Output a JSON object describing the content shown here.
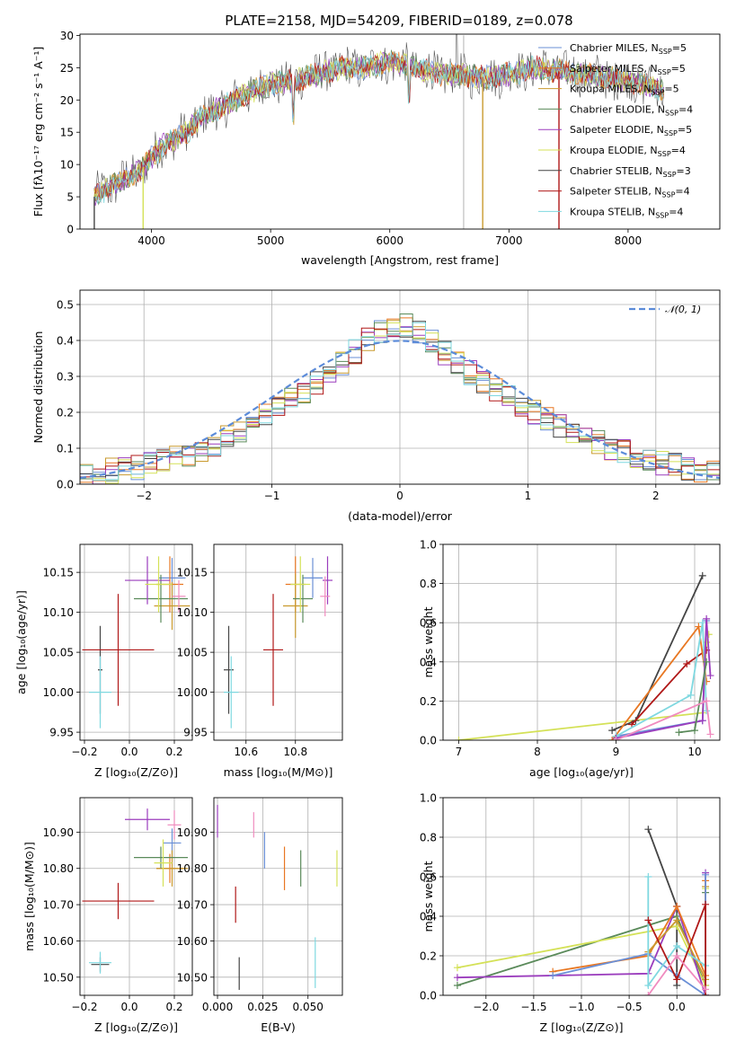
{
  "figure": {
    "title": "PLATE=2158, MJD=54209, FIBERID=0189, z=0.078"
  },
  "colors": {
    "Chabrier MILES": "#6a8fd6",
    "Salpeter MILES": "#e87722",
    "Kroupa MILES": "#c99a2e",
    "Chabrier ELODIE": "#5a8a5a",
    "Salpeter ELODIE": "#9b3dbd",
    "Kroupa ELODIE": "#d4e157",
    "Chabrier STELIB": "#444444",
    "Salpeter STELIB": "#b01818",
    "Kroupa STELIB": "#7fd8e0",
    "extra_pink": "#f08bbf",
    "normal_curve": "#5b8bd9",
    "grid": "#b0b0b0"
  },
  "chart_data": [
    {
      "id": "spectrum",
      "type": "line",
      "title": "PLATE=2158, MJD=54209, FIBERID=0189, z=0.078",
      "xlabel": "wavelength [Angstrom, rest frame]",
      "ylabel": "Flux [fλ10⁻¹⁷ erg cm⁻² s⁻¹ A⁻¹]",
      "xlim": [
        3400,
        8770
      ],
      "ylim": [
        0,
        30.2
      ],
      "xticks": [
        4000,
        5000,
        6000,
        7000,
        8000
      ],
      "yticks": [
        0,
        5,
        10,
        15,
        20,
        25,
        30
      ],
      "grid": false,
      "legend_position": "top-right",
      "continuum": {
        "x": [
          3520,
          3600,
          3700,
          3800,
          3900,
          4000,
          4100,
          4200,
          4300,
          4400,
          4500,
          4600,
          4800,
          5000,
          5200,
          5400,
          5600,
          5800,
          6000,
          6200,
          6400,
          6600,
          6800,
          7000,
          7200,
          7400,
          7600,
          7800,
          8000,
          8200,
          8300
        ],
        "y": [
          5,
          6,
          7,
          8,
          9,
          11,
          13,
          14,
          15,
          17,
          18,
          19,
          21,
          22.5,
          23,
          24,
          25,
          25,
          26,
          25,
          24,
          24,
          23.5,
          24,
          25,
          24.5,
          24,
          23.5,
          23,
          22,
          21.5
        ]
      },
      "series": [
        {
          "name": "Chabrier MILES, N_SSP=5",
          "label_main": "Chabrier MILES, N",
          "label_sub": "SSP",
          "label_end": "=5",
          "color_key": "Chabrier MILES"
        },
        {
          "name": "Salpeter MILES, N_SSP=5",
          "label_main": "Salpeter MILES, N",
          "label_sub": "SSP",
          "label_end": "=5",
          "color_key": "Salpeter MILES"
        },
        {
          "name": "Kroupa MILES, N_SSP=5",
          "label_main": "Kroupa MILES, N",
          "label_sub": "SSP",
          "label_end": "=5",
          "color_key": "Kroupa MILES"
        },
        {
          "name": "Chabrier ELODIE, N_SSP=4",
          "label_main": "Chabrier ELODIE, N",
          "label_sub": "SSP",
          "label_end": "=4",
          "color_key": "Chabrier ELODIE"
        },
        {
          "name": "Salpeter ELODIE, N_SSP=5",
          "label_main": "Salpeter ELODIE, N",
          "label_sub": "SSP",
          "label_end": "=5",
          "color_key": "Salpeter ELODIE"
        },
        {
          "name": "Kroupa ELODIE, N_SSP=4",
          "label_main": "Kroupa ELODIE, N",
          "label_sub": "SSP",
          "label_end": "=4",
          "color_key": "Kroupa ELODIE"
        },
        {
          "name": "Chabrier STELIB, N_SSP=3",
          "label_main": "Chabrier STELIB, N",
          "label_sub": "SSP",
          "label_end": "=3",
          "color_key": "Chabrier STELIB"
        },
        {
          "name": "Salpeter STELIB, N_SSP=4",
          "label_main": "Salpeter STELIB, N",
          "label_sub": "SSP",
          "label_end": "=4",
          "color_key": "Salpeter STELIB"
        },
        {
          "name": "Kroupa STELIB, N_SSP=4",
          "label_main": "Kroupa STELIB, N",
          "label_sub": "SSP",
          "label_end": "=4",
          "color_key": "Kroupa STELIB"
        }
      ],
      "drops": [
        {
          "x": 3520,
          "color_key": "Chabrier STELIB"
        },
        {
          "x": 3930,
          "color_key": "Kroupa ELODIE"
        },
        {
          "x": 6780,
          "color_key": "Kroupa MILES"
        },
        {
          "x": 7420,
          "color_key": "Salpeter STELIB"
        }
      ]
    },
    {
      "id": "residual_distribution",
      "type": "line",
      "xlabel": "(data-model)/error",
      "ylabel": "Normed distribution",
      "xlim": [
        -2.5,
        2.5
      ],
      "ylim": [
        0,
        0.54
      ],
      "xticks": [
        -2,
        -1,
        0,
        1,
        2
      ],
      "yticks": [
        0.0,
        0.1,
        0.2,
        0.3,
        0.4,
        0.5
      ],
      "grid": true,
      "legend_position": "top-right",
      "legend": "𝒩(0, 1)",
      "bin_width": 0.1,
      "histogram_shape": {
        "x": [
          -2.5,
          -2.0,
          -1.5,
          -1.0,
          -0.5,
          -0.2,
          0.0,
          0.2,
          0.5,
          1.0,
          1.5,
          2.0,
          2.5
        ],
        "y": [
          0.025,
          0.05,
          0.1,
          0.2,
          0.32,
          0.42,
          0.45,
          0.41,
          0.32,
          0.21,
          0.12,
          0.06,
          0.03
        ]
      },
      "series_color_keys": [
        "Chabrier MILES",
        "Salpeter MILES",
        "Kroupa MILES",
        "Chabrier ELODIE",
        "Salpeter ELODIE",
        "Kroupa ELODIE",
        "Chabrier STELIB",
        "Salpeter STELIB",
        "Kroupa STELIB"
      ]
    },
    {
      "id": "age_vs_Z",
      "type": "scatter",
      "xlabel": "Z [log₁₀(Z/Z⊙)]",
      "ylabel": "age  [log₁₀(age/yr)]",
      "xlim": [
        -0.22,
        0.28
      ],
      "ylim": [
        9.94,
        10.185
      ],
      "xticks": [
        -0.2,
        0.0,
        0.2
      ],
      "xtick_labels": [
        "−0.2",
        "0.0",
        "0.2"
      ],
      "yticks": [
        9.95,
        10.0,
        10.05,
        10.1,
        10.15
      ],
      "grid": true,
      "points": [
        {
          "x": 0.19,
          "y": 10.143,
          "ex": 0.06,
          "ey": 0.025,
          "color_key": "Chabrier MILES"
        },
        {
          "x": 0.18,
          "y": 10.135,
          "ex": 0.06,
          "ey": 0.035,
          "color_key": "Salpeter MILES"
        },
        {
          "x": 0.19,
          "y": 10.108,
          "ex": 0.08,
          "ey": 0.03,
          "color_key": "Kroupa MILES"
        },
        {
          "x": 0.14,
          "y": 10.117,
          "ex": 0.12,
          "ey": 0.03,
          "color_key": "Chabrier ELODIE"
        },
        {
          "x": 0.08,
          "y": 10.14,
          "ex": 0.1,
          "ey": 0.03,
          "color_key": "Salpeter ELODIE"
        },
        {
          "x": 0.13,
          "y": 10.135,
          "ex": 0.06,
          "ey": 0.035,
          "color_key": "Kroupa ELODIE"
        },
        {
          "x": -0.13,
          "y": 10.028,
          "ex": 0.01,
          "ey": 0.055,
          "color_key": "Chabrier STELIB"
        },
        {
          "x": -0.05,
          "y": 10.053,
          "ex": 0.16,
          "ey": 0.07,
          "color_key": "Salpeter STELIB"
        },
        {
          "x": -0.13,
          "y": 10.0,
          "ex": 0.05,
          "ey": 0.045,
          "color_key": "Kroupa STELIB"
        },
        {
          "x": 0.22,
          "y": 10.12,
          "ex": 0.03,
          "ey": 0.02,
          "color_key": "extra_pink"
        }
      ]
    },
    {
      "id": "age_vs_mass",
      "type": "scatter",
      "xlabel": "mass [log₁₀(M/M⊙)]",
      "ylabel": "",
      "xlim": [
        10.47,
        10.99
      ],
      "ylim": [
        9.94,
        10.185
      ],
      "xticks": [
        10.6,
        10.8
      ],
      "yticks": [
        9.95,
        10.0,
        10.05,
        10.1,
        10.15
      ],
      "grid": true,
      "points": [
        {
          "x": 10.87,
          "y": 10.143,
          "ex": 0.04,
          "ey": 0.025,
          "color_key": "Chabrier MILES"
        },
        {
          "x": 10.8,
          "y": 10.135,
          "ex": 0.04,
          "ey": 0.035,
          "color_key": "Salpeter MILES"
        },
        {
          "x": 10.8,
          "y": 10.108,
          "ex": 0.05,
          "ey": 0.04,
          "color_key": "Kroupa MILES"
        },
        {
          "x": 10.83,
          "y": 10.117,
          "ex": 0.04,
          "ey": 0.03,
          "color_key": "Chabrier ELODIE"
        },
        {
          "x": 10.93,
          "y": 10.14,
          "ex": 0.02,
          "ey": 0.03,
          "color_key": "Salpeter ELODIE"
        },
        {
          "x": 10.82,
          "y": 10.135,
          "ex": 0.04,
          "ey": 0.035,
          "color_key": "Kroupa ELODIE"
        },
        {
          "x": 10.53,
          "y": 10.028,
          "ex": 0.02,
          "ey": 0.055,
          "color_key": "Chabrier STELIB"
        },
        {
          "x": 10.71,
          "y": 10.053,
          "ex": 0.04,
          "ey": 0.07,
          "color_key": "Salpeter STELIB"
        },
        {
          "x": 10.54,
          "y": 10.0,
          "ex": 0.03,
          "ey": 0.045,
          "color_key": "Kroupa STELIB"
        },
        {
          "x": 10.92,
          "y": 10.12,
          "ex": 0.02,
          "ey": 0.025,
          "color_key": "extra_pink"
        }
      ]
    },
    {
      "id": "mass_weight_vs_age",
      "type": "line",
      "xlabel": "age  [log₁₀(age/yr)]",
      "ylabel": "mass weight",
      "xlim": [
        6.8,
        10.32
      ],
      "ylim": [
        0,
        1.0
      ],
      "xticks": [
        7,
        8,
        9,
        10
      ],
      "yticks": [
        0.0,
        0.2,
        0.4,
        0.6,
        0.8,
        1.0
      ],
      "grid": true,
      "series": [
        {
          "color_key": "Kroupa ELODIE",
          "x": [
            7.0,
            10.1,
            10.15,
            10.18
          ],
          "y": [
            0.0,
            0.14,
            0.5,
            0.54
          ]
        },
        {
          "color_key": "Chabrier STELIB",
          "x": [
            8.95,
            9.25,
            10.1
          ],
          "y": [
            0.05,
            0.1,
            0.84
          ]
        },
        {
          "color_key": "Salpeter STELIB",
          "x": [
            9.2,
            9.9,
            10.15
          ],
          "y": [
            0.08,
            0.39,
            0.46
          ]
        },
        {
          "color_key": "Salpeter MILES",
          "x": [
            8.95,
            10.05,
            10.15
          ],
          "y": [
            0.0,
            0.58,
            0.3
          ]
        },
        {
          "color_key": "Chabrier MILES",
          "x": [
            9.0,
            10.1,
            10.15
          ],
          "y": [
            0.02,
            0.1,
            0.61
          ]
        },
        {
          "color_key": "Kroupa STELIB",
          "x": [
            9.0,
            9.95,
            10.1,
            10.15
          ],
          "y": [
            0.02,
            0.23,
            0.6,
            0.15
          ]
        },
        {
          "color_key": "Salpeter ELODIE",
          "x": [
            9.0,
            10.1,
            10.15,
            10.2
          ],
          "y": [
            0.01,
            0.1,
            0.62,
            0.33
          ]
        },
        {
          "color_key": "Chabrier ELODIE",
          "x": [
            9.8,
            10.0,
            10.15
          ],
          "y": [
            0.04,
            0.05,
            0.4
          ]
        },
        {
          "color_key": "extra_pink",
          "x": [
            9.0,
            10.15,
            10.2
          ],
          "y": [
            0.0,
            0.2,
            0.03
          ]
        }
      ]
    },
    {
      "id": "mass_vs_Z",
      "type": "scatter",
      "xlabel": "Z [log₁₀(Z/Z⊙)]",
      "ylabel": "mass [log₁₀(M/M⊙)]",
      "xlim": [
        -0.22,
        0.28
      ],
      "ylim": [
        10.45,
        10.995
      ],
      "xticks": [
        -0.2,
        0.0,
        0.2
      ],
      "xtick_labels": [
        "−0.2",
        "0.0",
        "0.2"
      ],
      "yticks": [
        10.5,
        10.6,
        10.7,
        10.8,
        10.9
      ],
      "grid": true,
      "points": [
        {
          "x": 0.19,
          "y": 10.87,
          "ex": 0.04,
          "ey": 0.04,
          "color_key": "Chabrier MILES"
        },
        {
          "x": 0.18,
          "y": 10.8,
          "ex": 0.06,
          "ey": 0.04,
          "color_key": "Salpeter MILES"
        },
        {
          "x": 0.19,
          "y": 10.8,
          "ex": 0.07,
          "ey": 0.05,
          "color_key": "Kroupa MILES"
        },
        {
          "x": 0.14,
          "y": 10.83,
          "ex": 0.12,
          "ey": 0.03,
          "color_key": "Chabrier ELODIE"
        },
        {
          "x": 0.08,
          "y": 10.935,
          "ex": 0.1,
          "ey": 0.03,
          "color_key": "Salpeter ELODIE"
        },
        {
          "x": 0.15,
          "y": 10.815,
          "ex": 0.04,
          "ey": 0.065,
          "color_key": "Kroupa ELODIE"
        },
        {
          "x": -0.13,
          "y": 10.535,
          "ex": 0.04,
          "ey": 0.02,
          "color_key": "Chabrier STELIB"
        },
        {
          "x": -0.05,
          "y": 10.71,
          "ex": 0.16,
          "ey": 0.05,
          "color_key": "Salpeter STELIB"
        },
        {
          "x": -0.13,
          "y": 10.54,
          "ex": 0.05,
          "ey": 0.03,
          "color_key": "Kroupa STELIB"
        },
        {
          "x": 0.2,
          "y": 10.92,
          "ex": 0.03,
          "ey": 0.04,
          "color_key": "extra_pink"
        }
      ]
    },
    {
      "id": "mass_vs_EBV",
      "type": "scatter",
      "xlabel": "E(B-V)",
      "ylabel": "",
      "xlim": [
        -0.002,
        0.069
      ],
      "ylim": [
        10.45,
        10.995
      ],
      "xticks": [
        0.0,
        0.025,
        0.05
      ],
      "xtick_labels": [
        "0.000",
        "0.025",
        "0.050"
      ],
      "yticks": [
        10.5,
        10.6,
        10.7,
        10.8,
        10.9
      ],
      "grid": true,
      "points": [
        {
          "x": 0.0,
          "y": 10.93,
          "ey": 0.045,
          "color_key": "Salpeter ELODIE"
        },
        {
          "x": 0.012,
          "y": 10.51,
          "ey": 0.045,
          "color_key": "Chabrier STELIB"
        },
        {
          "x": 0.01,
          "y": 10.7,
          "ey": 0.05,
          "color_key": "Salpeter STELIB"
        },
        {
          "x": 0.02,
          "y": 10.92,
          "ey": 0.035,
          "color_key": "extra_pink"
        },
        {
          "x": 0.026,
          "y": 10.85,
          "ey": 0.05,
          "color_key": "Chabrier MILES"
        },
        {
          "x": 0.037,
          "y": 10.8,
          "ey": 0.06,
          "color_key": "Salpeter MILES"
        },
        {
          "x": 0.046,
          "y": 10.8,
          "ey": 0.05,
          "color_key": "Chabrier ELODIE"
        },
        {
          "x": 0.054,
          "y": 10.54,
          "ey": 0.07,
          "color_key": "Kroupa STELIB"
        },
        {
          "x": 0.066,
          "y": 10.8,
          "ey": 0.05,
          "color_key": "Kroupa ELODIE"
        }
      ]
    },
    {
      "id": "mass_weight_vs_Z",
      "type": "line",
      "xlabel": "Z [log₁₀(Z/Z⊙)]",
      "ylabel": "mass weight",
      "xlim": [
        -2.45,
        0.45
      ],
      "ylim": [
        0,
        1.0
      ],
      "xticks": [
        -2.0,
        -1.5,
        -1.0,
        -0.5,
        0.0
      ],
      "xtick_labels": [
        "−2.0",
        "−1.5",
        "−1.0",
        "−0.5",
        "0.0"
      ],
      "yticks": [
        0.0,
        0.2,
        0.4,
        0.6,
        0.8,
        1.0
      ],
      "grid": true,
      "series": [
        {
          "color_key": "Chabrier STELIB",
          "x": [
            -0.3,
            0.0,
            0.0
          ],
          "y": [
            0.84,
            0.45,
            0.05
          ]
        },
        {
          "color_key": "Chabrier ELODIE",
          "x": [
            -2.3,
            0.0,
            0.3,
            0.3
          ],
          "y": [
            0.05,
            0.4,
            0.05,
            0.52
          ]
        },
        {
          "color_key": "Kroupa ELODIE",
          "x": [
            -2.3,
            0.0,
            0.3,
            0.3
          ],
          "y": [
            0.14,
            0.35,
            0.05,
            0.54
          ]
        },
        {
          "color_key": "Salpeter ELODIE",
          "x": [
            -2.3,
            -0.3,
            0.0,
            0.3,
            0.3
          ],
          "y": [
            0.09,
            0.11,
            0.45,
            0.0,
            0.62
          ]
        },
        {
          "color_key": "Salpeter MILES",
          "x": [
            -1.3,
            -0.3,
            0.0,
            0.3,
            0.3
          ],
          "y": [
            0.12,
            0.2,
            0.45,
            0.1,
            0.58
          ]
        },
        {
          "color_key": "Kroupa MILES",
          "x": [
            -0.3,
            0.0,
            0.3,
            0.3
          ],
          "y": [
            0.22,
            0.38,
            0.08,
            0.55
          ]
        },
        {
          "color_key": "Chabrier MILES",
          "x": [
            -1.3,
            -0.3,
            0.0,
            0.3,
            0.3
          ],
          "y": [
            0.1,
            0.21,
            0.1,
            0.0,
            0.61
          ]
        },
        {
          "color_key": "Kroupa STELIB",
          "x": [
            -0.3,
            -0.3,
            0.0,
            0.3
          ],
          "y": [
            0.6,
            0.05,
            0.25,
            0.15
          ]
        },
        {
          "color_key": "Salpeter STELIB",
          "x": [
            -0.3,
            0.0,
            0.3,
            0.3
          ],
          "y": [
            0.38,
            0.08,
            0.46,
            0.0
          ]
        },
        {
          "color_key": "extra_pink",
          "x": [
            -0.3,
            0.0,
            0.3
          ],
          "y": [
            0.0,
            0.2,
            0.03
          ]
        }
      ]
    }
  ]
}
